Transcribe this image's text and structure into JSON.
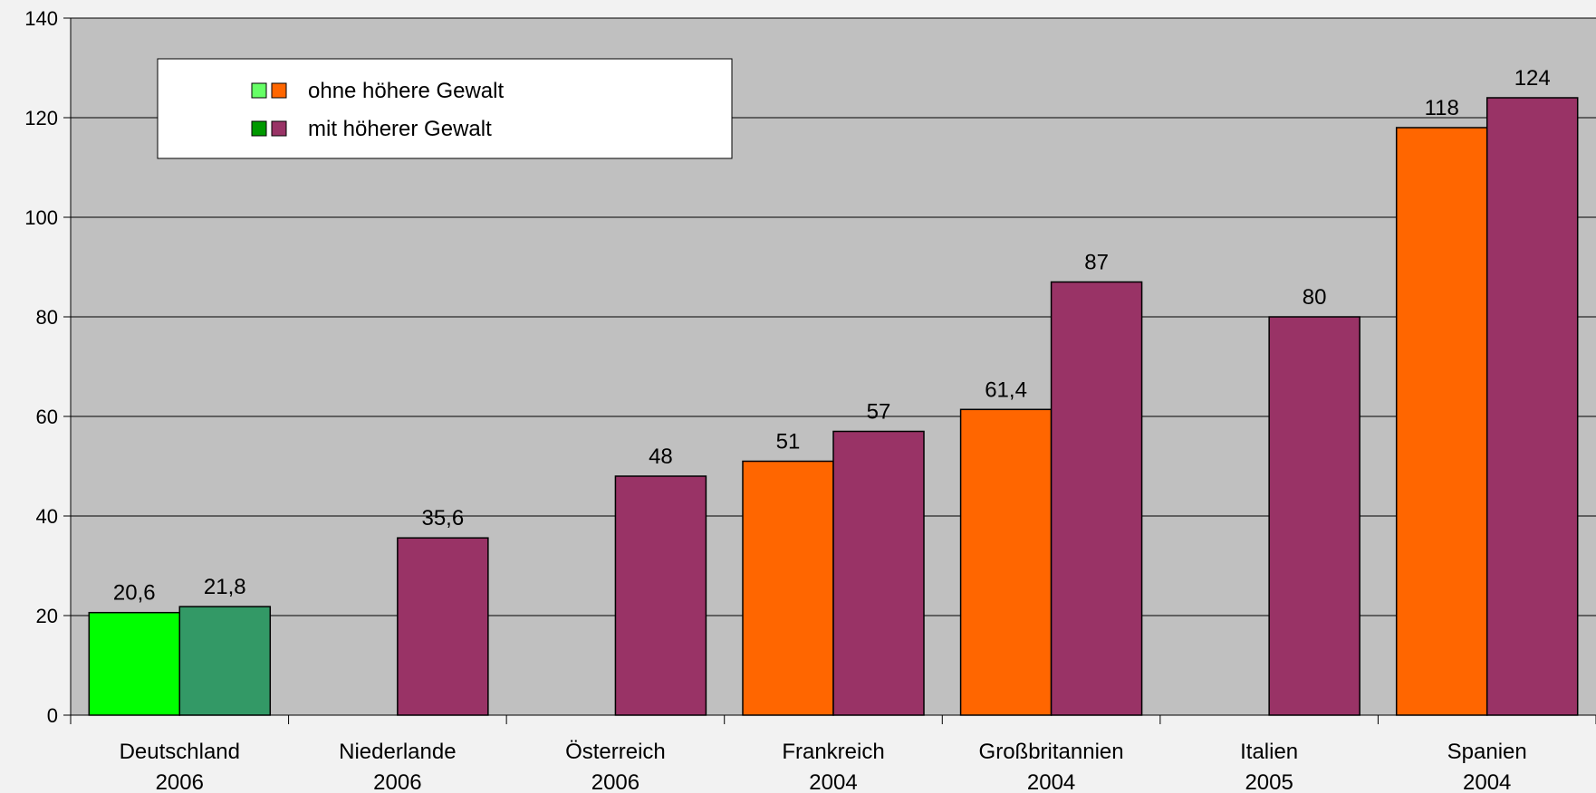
{
  "chart_data": {
    "type": "bar",
    "title": "",
    "xlabel": "",
    "ylabel": "",
    "ylim": [
      0,
      140
    ],
    "yticks": [
      0,
      20,
      40,
      60,
      80,
      100,
      120,
      140
    ],
    "grid": true,
    "legend_position": "top-left",
    "categories": [
      {
        "name": "Deutschland",
        "year": "2006"
      },
      {
        "name": "Niederlande",
        "year": "2006"
      },
      {
        "name": "Österreich",
        "year": "2006"
      },
      {
        "name": "Frankreich",
        "year": "2004"
      },
      {
        "name": "Großbritannien",
        "year": "2004"
      },
      {
        "name": "Italien",
        "year": "2005"
      },
      {
        "name": "Spanien",
        "year": "2004"
      }
    ],
    "series": [
      {
        "name": "ohne höhere Gewalt",
        "legend_colors": [
          "#66ff66",
          "#ff6600"
        ],
        "values": [
          20.6,
          null,
          null,
          51,
          61.4,
          null,
          118
        ],
        "labels": [
          "20,6",
          "",
          "",
          "51",
          "61,4",
          "",
          "118"
        ],
        "colors": [
          "#00ff00",
          "#ff6600",
          "#ff6600",
          "#ff6600",
          "#ff6600",
          "#ff6600",
          "#ff6600"
        ]
      },
      {
        "name": "mit höherer Gewalt",
        "legend_colors": [
          "#009900",
          "#993366"
        ],
        "values": [
          21.8,
          35.6,
          48,
          57,
          87,
          80,
          124
        ],
        "labels": [
          "21,8",
          "35,6",
          "48",
          "57",
          "87",
          "80",
          "124"
        ],
        "colors": [
          "#339966",
          "#993366",
          "#993366",
          "#993366",
          "#993366",
          "#993366",
          "#993366"
        ]
      }
    ],
    "colors": {
      "plot_background": "#c0c0c0",
      "gridline": "#000000",
      "page_background": "#f2f2f2"
    }
  }
}
